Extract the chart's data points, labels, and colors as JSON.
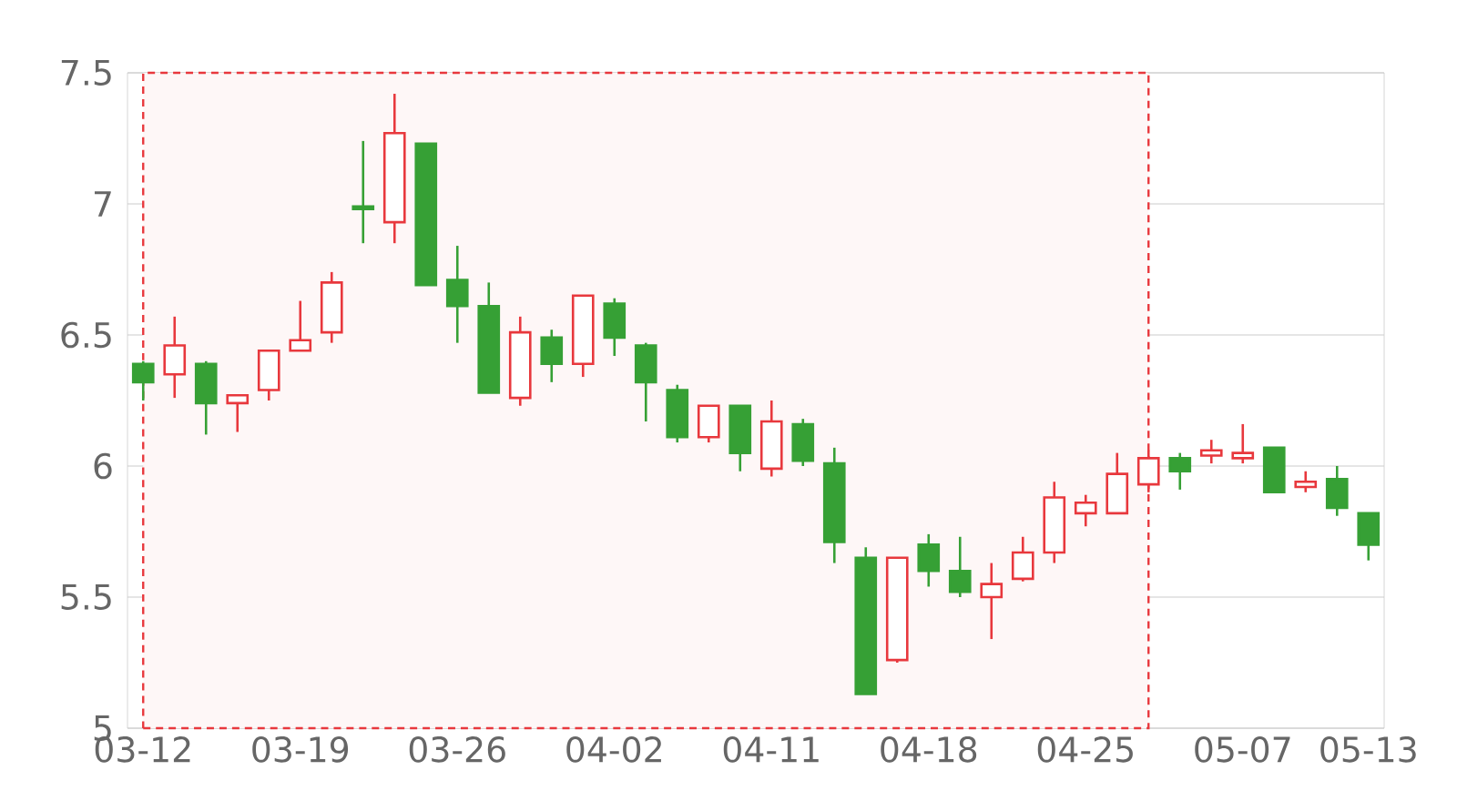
{
  "chart_data": {
    "type": "candlestick",
    "categories": [
      "03-12",
      null,
      null,
      null,
      null,
      "03-19",
      null,
      null,
      null,
      null,
      "03-26",
      null,
      null,
      null,
      null,
      "04-02",
      null,
      null,
      null,
      null,
      "04-11",
      null,
      null,
      null,
      null,
      "04-18",
      null,
      null,
      null,
      null,
      "04-25",
      null,
      null,
      null,
      null,
      "05-07",
      null,
      null,
      null,
      "05-13"
    ],
    "ohlc": [
      [
        6.39,
        6.4,
        6.25,
        6.32
      ],
      [
        6.35,
        6.57,
        6.26,
        6.46
      ],
      [
        6.39,
        6.4,
        6.12,
        6.24
      ],
      [
        6.24,
        6.27,
        6.13,
        6.27
      ],
      [
        6.29,
        6.44,
        6.25,
        6.44
      ],
      [
        6.44,
        6.63,
        6.44,
        6.48
      ],
      [
        6.51,
        6.74,
        6.47,
        6.7
      ],
      [
        6.99,
        7.24,
        6.85,
        6.98
      ],
      [
        6.93,
        7.42,
        6.85,
        7.27
      ],
      [
        7.23,
        7.23,
        6.69,
        6.69
      ],
      [
        6.71,
        6.84,
        6.47,
        6.61
      ],
      [
        6.61,
        6.7,
        6.28,
        6.28
      ],
      [
        6.26,
        6.57,
        6.23,
        6.51
      ],
      [
        6.49,
        6.52,
        6.32,
        6.39
      ],
      [
        6.39,
        6.65,
        6.34,
        6.65
      ],
      [
        6.62,
        6.64,
        6.42,
        6.49
      ],
      [
        6.46,
        6.47,
        6.17,
        6.32
      ],
      [
        6.29,
        6.31,
        6.09,
        6.11
      ],
      [
        6.11,
        6.23,
        6.09,
        6.23
      ],
      [
        6.23,
        6.23,
        5.98,
        6.05
      ],
      [
        5.99,
        6.25,
        5.96,
        6.17
      ],
      [
        6.16,
        6.18,
        6.0,
        6.02
      ],
      [
        6.01,
        6.07,
        5.63,
        5.71
      ],
      [
        5.65,
        5.69,
        5.13,
        5.13
      ],
      [
        5.26,
        5.65,
        5.25,
        5.65
      ],
      [
        5.7,
        5.74,
        5.54,
        5.6
      ],
      [
        5.6,
        5.73,
        5.5,
        5.52
      ],
      [
        5.5,
        5.63,
        5.34,
        5.55
      ],
      [
        5.57,
        5.73,
        5.56,
        5.67
      ],
      [
        5.67,
        5.94,
        5.63,
        5.88
      ],
      [
        5.82,
        5.89,
        5.77,
        5.86
      ],
      [
        5.82,
        6.05,
        5.82,
        5.97
      ],
      [
        5.93,
        6.06,
        5.9,
        6.03
      ],
      [
        6.03,
        6.05,
        5.91,
        5.98
      ],
      [
        6.04,
        6.1,
        6.01,
        6.06
      ],
      [
        6.03,
        6.16,
        6.01,
        6.05
      ],
      [
        6.07,
        6.07,
        5.9,
        5.9
      ],
      [
        5.92,
        5.98,
        5.9,
        5.94
      ],
      [
        5.95,
        6.0,
        5.81,
        5.84
      ],
      [
        5.82,
        5.82,
        5.64,
        5.7
      ]
    ],
    "colors": [
      "#36a035",
      "#e8383d",
      "#36a035",
      "#e8383d",
      "#e8383d",
      "#e8383d",
      "#e8383d",
      "#36a035",
      "#e8383d",
      "#36a035",
      "#36a035",
      "#36a035",
      "#e8383d",
      "#36a035",
      "#e8383d",
      "#36a035",
      "#36a035",
      "#36a035",
      "#e8383d",
      "#36a035",
      "#e8383d",
      "#36a035",
      "#36a035",
      "#36a035",
      "#e8383d",
      "#36a035",
      "#36a035",
      "#e8383d",
      "#e8383d",
      "#e8383d",
      "#e8383d",
      "#e8383d",
      "#e8383d",
      "#36a035",
      "#e8383d",
      "#e8383d",
      "#36a035",
      "#e8383d",
      "#36a035",
      "#36a035"
    ],
    "ylim": [
      5,
      7.5
    ],
    "yticks": [
      5,
      5.5,
      6,
      6.5,
      7,
      7.5
    ],
    "grid": "y"
  }
}
